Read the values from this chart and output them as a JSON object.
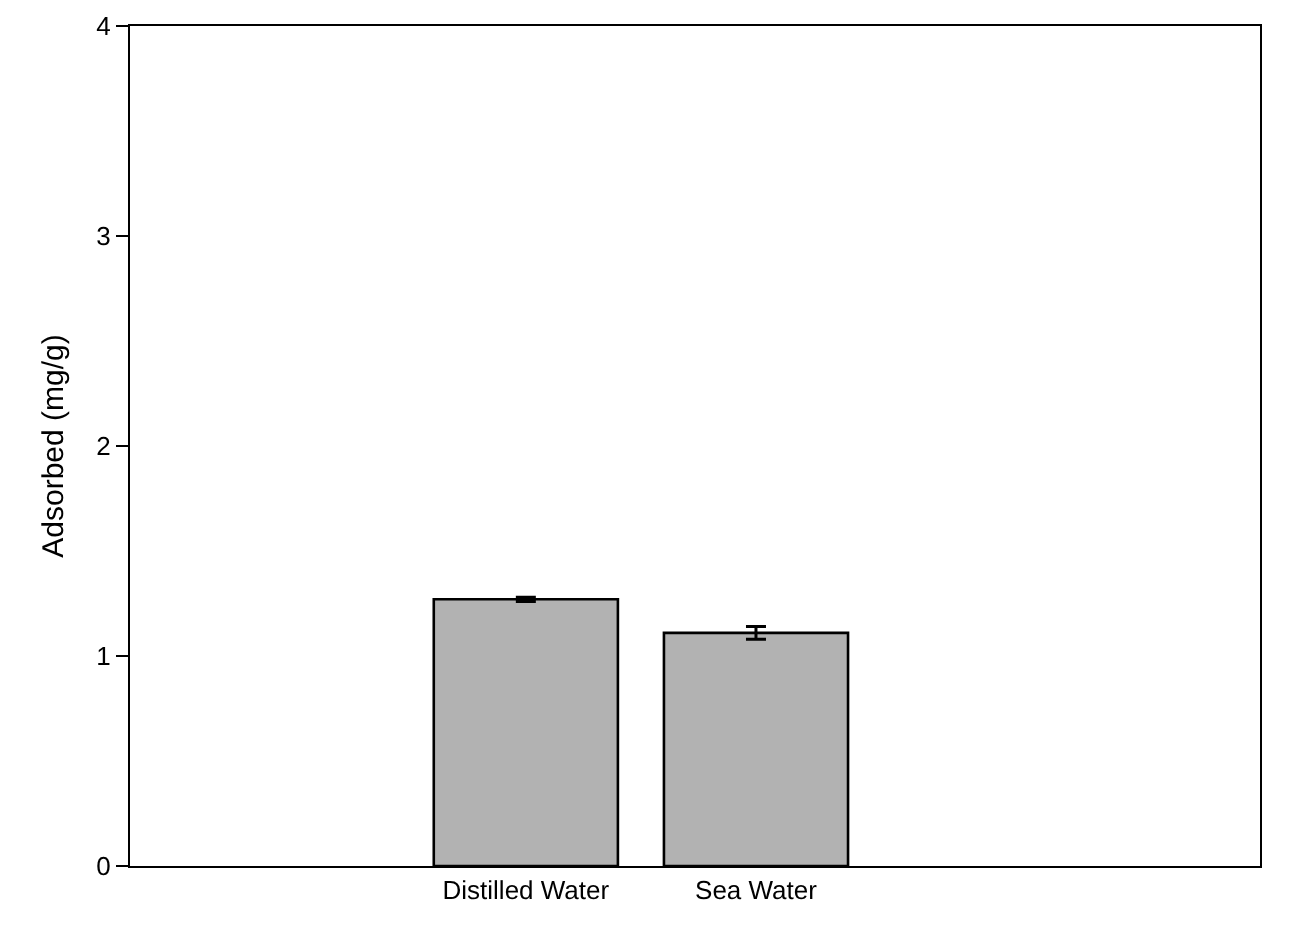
{
  "chart_data": {
    "type": "bar",
    "ylabel": "Adsorbed (mg/g)",
    "categories": [
      "Distilled Water",
      "Sea Water"
    ],
    "values": [
      1.27,
      1.11
    ],
    "errors": [
      0.01,
      0.03
    ],
    "color": "#b2b2b2",
    "ylim": [
      0,
      4
    ],
    "yticks": [
      0,
      1,
      2,
      3,
      4
    ],
    "grid": false
  }
}
